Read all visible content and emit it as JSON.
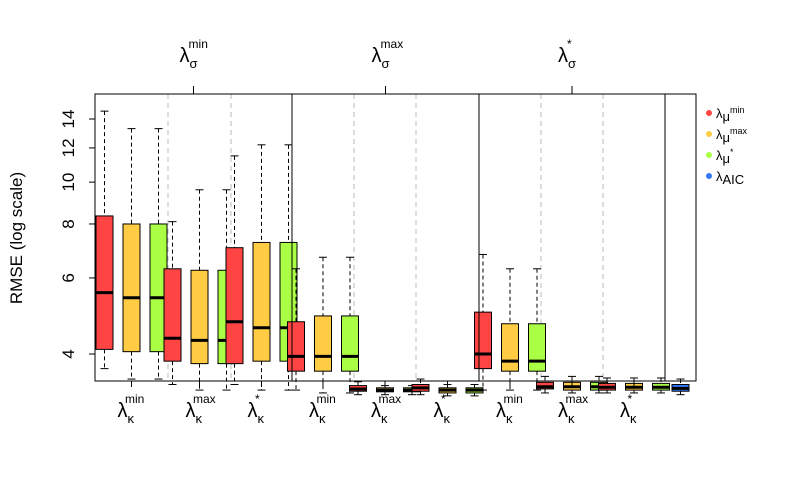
{
  "chart_data": {
    "type": "box",
    "ylabel": "RMSE (log scale)",
    "y_ticks": [
      4,
      6,
      8,
      10,
      12,
      14
    ],
    "ylim": [
      3.0,
      15.0
    ],
    "top_groups": [
      {
        "sym": "λ",
        "sub": "σ",
        "sup": "min"
      },
      {
        "sym": "λ",
        "sub": "σ",
        "sup": "max"
      },
      {
        "sym": "λ",
        "sub": "σ",
        "sup": "*"
      }
    ],
    "bottom_groups": [
      {
        "sym": "λ",
        "sub": "κ",
        "sup": "min"
      },
      {
        "sym": "λ",
        "sub": "κ",
        "sup": "max"
      },
      {
        "sym": "λ",
        "sub": "κ",
        "sup": "*"
      },
      {
        "sym": "λ",
        "sub": "κ",
        "sup": "min"
      },
      {
        "sym": "λ",
        "sub": "κ",
        "sup": "max"
      },
      {
        "sym": "λ",
        "sub": "κ",
        "sup": "*"
      },
      {
        "sym": "λ",
        "sub": "κ",
        "sup": "min"
      },
      {
        "sym": "λ",
        "sub": "κ",
        "sup": "max"
      },
      {
        "sym": "λ",
        "sub": "κ",
        "sup": "*"
      }
    ],
    "legend": [
      {
        "sym": "λ",
        "sub": "μ",
        "sup": "min",
        "color": "#ff4444"
      },
      {
        "sym": "λ",
        "sub": "μ",
        "sup": "max",
        "color": "#ffcc44"
      },
      {
        "sym": "λ",
        "sub": "μ",
        "sup": "*",
        "color": "#aaff44"
      },
      {
        "sym": "λ",
        "sub": "AIC",
        "sup": "",
        "color": "#3377ff"
      }
    ],
    "series": [
      {
        "name": "λμ min",
        "color": "#ff4444"
      },
      {
        "name": "λμ max",
        "color": "#ffcc44"
      },
      {
        "name": "λμ *",
        "color": "#aaff44"
      },
      {
        "name": "λAIC",
        "color": "#3377ff"
      }
    ],
    "boxes": [
      {
        "group": 0,
        "sub": 0,
        "series": 0,
        "min": 3.7,
        "q1": 4.1,
        "median": 5.55,
        "q3": 8.35,
        "max": 14.6
      },
      {
        "group": 0,
        "sub": 0,
        "series": 1,
        "min": 3.5,
        "q1": 4.05,
        "median": 5.4,
        "q3": 8.0,
        "max": 13.3
      },
      {
        "group": 0,
        "sub": 0,
        "series": 2,
        "min": 3.5,
        "q1": 4.05,
        "median": 5.4,
        "q3": 8.0,
        "max": 13.3
      },
      {
        "group": 0,
        "sub": 1,
        "series": 0,
        "min": 3.4,
        "q1": 3.85,
        "median": 4.35,
        "q3": 6.3,
        "max": 8.1
      },
      {
        "group": 0,
        "sub": 1,
        "series": 1,
        "min": 3.3,
        "q1": 3.8,
        "median": 4.3,
        "q3": 6.25,
        "max": 9.6
      },
      {
        "group": 0,
        "sub": 1,
        "series": 2,
        "min": 3.3,
        "q1": 3.8,
        "median": 4.3,
        "q3": 6.25,
        "max": 9.6
      },
      {
        "group": 0,
        "sub": 2,
        "series": 0,
        "min": 3.4,
        "q1": 3.8,
        "median": 4.75,
        "q3": 7.05,
        "max": 11.5
      },
      {
        "group": 0,
        "sub": 2,
        "series": 1,
        "min": 3.3,
        "q1": 3.85,
        "median": 4.6,
        "q3": 7.25,
        "max": 12.2
      },
      {
        "group": 0,
        "sub": 2,
        "series": 2,
        "min": 3.3,
        "q1": 3.85,
        "median": 4.6,
        "q3": 7.25,
        "max": 12.2
      },
      {
        "group": 1,
        "sub": 0,
        "series": 0,
        "min": 3.3,
        "q1": 3.65,
        "median": 3.95,
        "q3": 4.75,
        "max": 6.3
      },
      {
        "group": 1,
        "sub": 0,
        "series": 1,
        "min": 3.25,
        "q1": 3.65,
        "median": 3.95,
        "q3": 4.9,
        "max": 6.7
      },
      {
        "group": 1,
        "sub": 0,
        "series": 2,
        "min": 3.25,
        "q1": 3.65,
        "median": 3.95,
        "q3": 4.9,
        "max": 6.7
      },
      {
        "group": 1,
        "sub": 1,
        "series": 0,
        "min": 3.22,
        "q1": 3.28,
        "median": 3.32,
        "q3": 3.38,
        "max": 3.45
      },
      {
        "group": 1,
        "sub": 1,
        "series": 1,
        "min": 3.22,
        "q1": 3.27,
        "median": 3.3,
        "q3": 3.34,
        "max": 3.38
      },
      {
        "group": 1,
        "sub": 1,
        "series": 2,
        "min": 3.22,
        "q1": 3.27,
        "median": 3.3,
        "q3": 3.34,
        "max": 3.38
      },
      {
        "group": 1,
        "sub": 2,
        "series": 0,
        "min": 3.22,
        "q1": 3.28,
        "median": 3.34,
        "q3": 3.4,
        "max": 3.5
      },
      {
        "group": 1,
        "sub": 2,
        "series": 1,
        "min": 3.2,
        "q1": 3.25,
        "median": 3.3,
        "q3": 3.34,
        "max": 3.4
      },
      {
        "group": 1,
        "sub": 2,
        "series": 2,
        "min": 3.2,
        "q1": 3.25,
        "median": 3.3,
        "q3": 3.34,
        "max": 3.4
      },
      {
        "group": 2,
        "sub": 0,
        "series": 0,
        "min": 3.3,
        "q1": 3.7,
        "median": 4.0,
        "q3": 5.0,
        "max": 6.8
      },
      {
        "group": 2,
        "sub": 0,
        "series": 1,
        "min": 3.3,
        "q1": 3.65,
        "median": 3.85,
        "q3": 4.7,
        "max": 6.3
      },
      {
        "group": 2,
        "sub": 0,
        "series": 2,
        "min": 3.3,
        "q1": 3.65,
        "median": 3.85,
        "q3": 4.7,
        "max": 6.3
      },
      {
        "group": 2,
        "sub": 1,
        "series": 0,
        "min": 3.25,
        "q1": 3.32,
        "median": 3.36,
        "q3": 3.44,
        "max": 3.55
      },
      {
        "group": 2,
        "sub": 1,
        "series": 1,
        "min": 3.25,
        "q1": 3.3,
        "median": 3.36,
        "q3": 3.44,
        "max": 3.55
      },
      {
        "group": 2,
        "sub": 1,
        "series": 2,
        "min": 3.25,
        "q1": 3.3,
        "median": 3.36,
        "q3": 3.44,
        "max": 3.55
      },
      {
        "group": 2,
        "sub": 2,
        "series": 0,
        "min": 3.25,
        "q1": 3.3,
        "median": 3.35,
        "q3": 3.42,
        "max": 3.52
      },
      {
        "group": 2,
        "sub": 2,
        "series": 1,
        "min": 3.25,
        "q1": 3.3,
        "median": 3.35,
        "q3": 3.42,
        "max": 3.52
      },
      {
        "group": 2,
        "sub": 2,
        "series": 2,
        "min": 3.25,
        "q1": 3.3,
        "median": 3.35,
        "q3": 3.42,
        "max": 3.52
      },
      {
        "group": 3,
        "sub": 0,
        "series": 3,
        "min": 3.22,
        "q1": 3.28,
        "median": 3.33,
        "q3": 3.4,
        "max": 3.5
      }
    ]
  }
}
